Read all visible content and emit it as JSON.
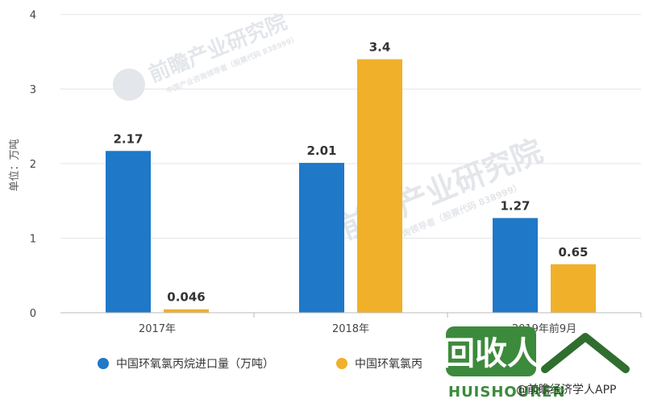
{
  "chart_data": {
    "type": "bar",
    "ylabel": "单位：万吨",
    "ylim": [
      0,
      4
    ],
    "yticks": [
      0,
      1,
      2,
      3,
      4
    ],
    "categories": [
      "2017年",
      "2018年",
      "2019年前9月"
    ],
    "series": [
      {
        "name": "中国环氧氯丙烷进口量（万吨）",
        "color": "#1f78c8",
        "values": [
          2.17,
          2.01,
          1.27
        ],
        "labels": [
          "2.17",
          "2.01",
          "1.27"
        ]
      },
      {
        "name": "中国环氧氯丙",
        "color": "#f0b02a",
        "values": [
          0.046,
          3.4,
          0.65
        ],
        "labels": [
          "0.046",
          "3.4",
          "0.65"
        ]
      }
    ],
    "legend_position": "bottom",
    "grid": true
  },
  "watermark": {
    "text": "前瞻产业研究院",
    "subtext": "中国产业咨询领导者（股票代码 838999）"
  },
  "brand": {
    "logo_text": "回收人",
    "url_text": "HUISHOUREN",
    "credit": "@前瞻经济学人APP",
    "colors": {
      "logo_green": "#3c8a3c",
      "logo_dark": "#2f6e2f"
    }
  }
}
